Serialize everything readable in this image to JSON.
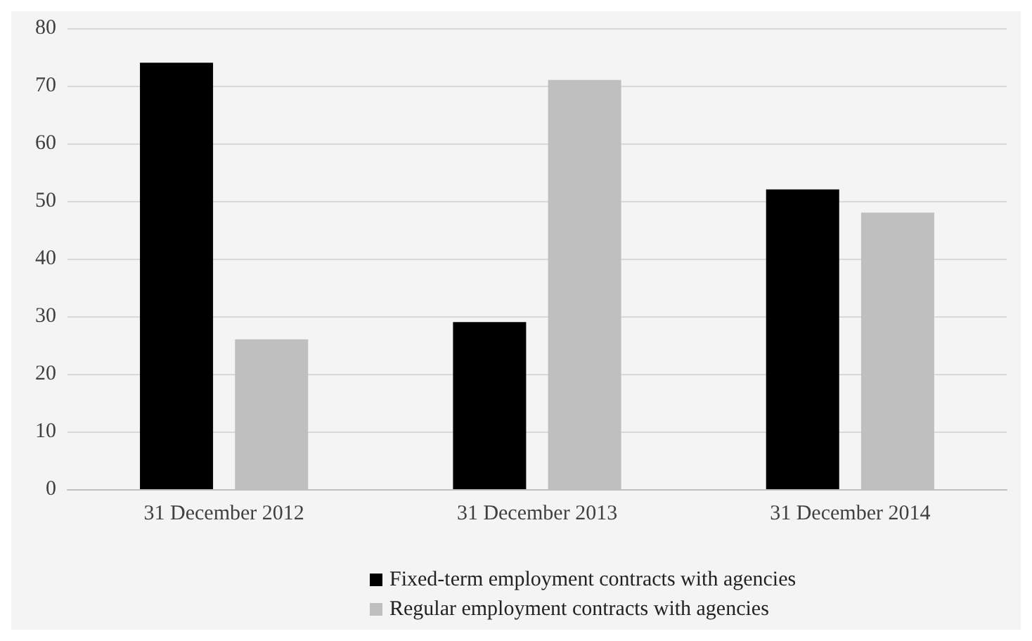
{
  "chart_data": {
    "type": "bar",
    "categories": [
      "31 December 2012",
      "31 December 2013",
      "31 December 2014"
    ],
    "series": [
      {
        "name": "Fixed-term employment contracts with agencies",
        "color": "#000000",
        "values": [
          74,
          29,
          52
        ]
      },
      {
        "name": "Regular employment contracts with agencies",
        "color": "#bfbfbf",
        "values": [
          26,
          71,
          48
        ]
      }
    ],
    "ylim": [
      0,
      80
    ],
    "yticks": [
      0,
      10,
      20,
      30,
      40,
      50,
      60,
      70,
      80
    ],
    "grid": "y",
    "legend": "bottom"
  }
}
